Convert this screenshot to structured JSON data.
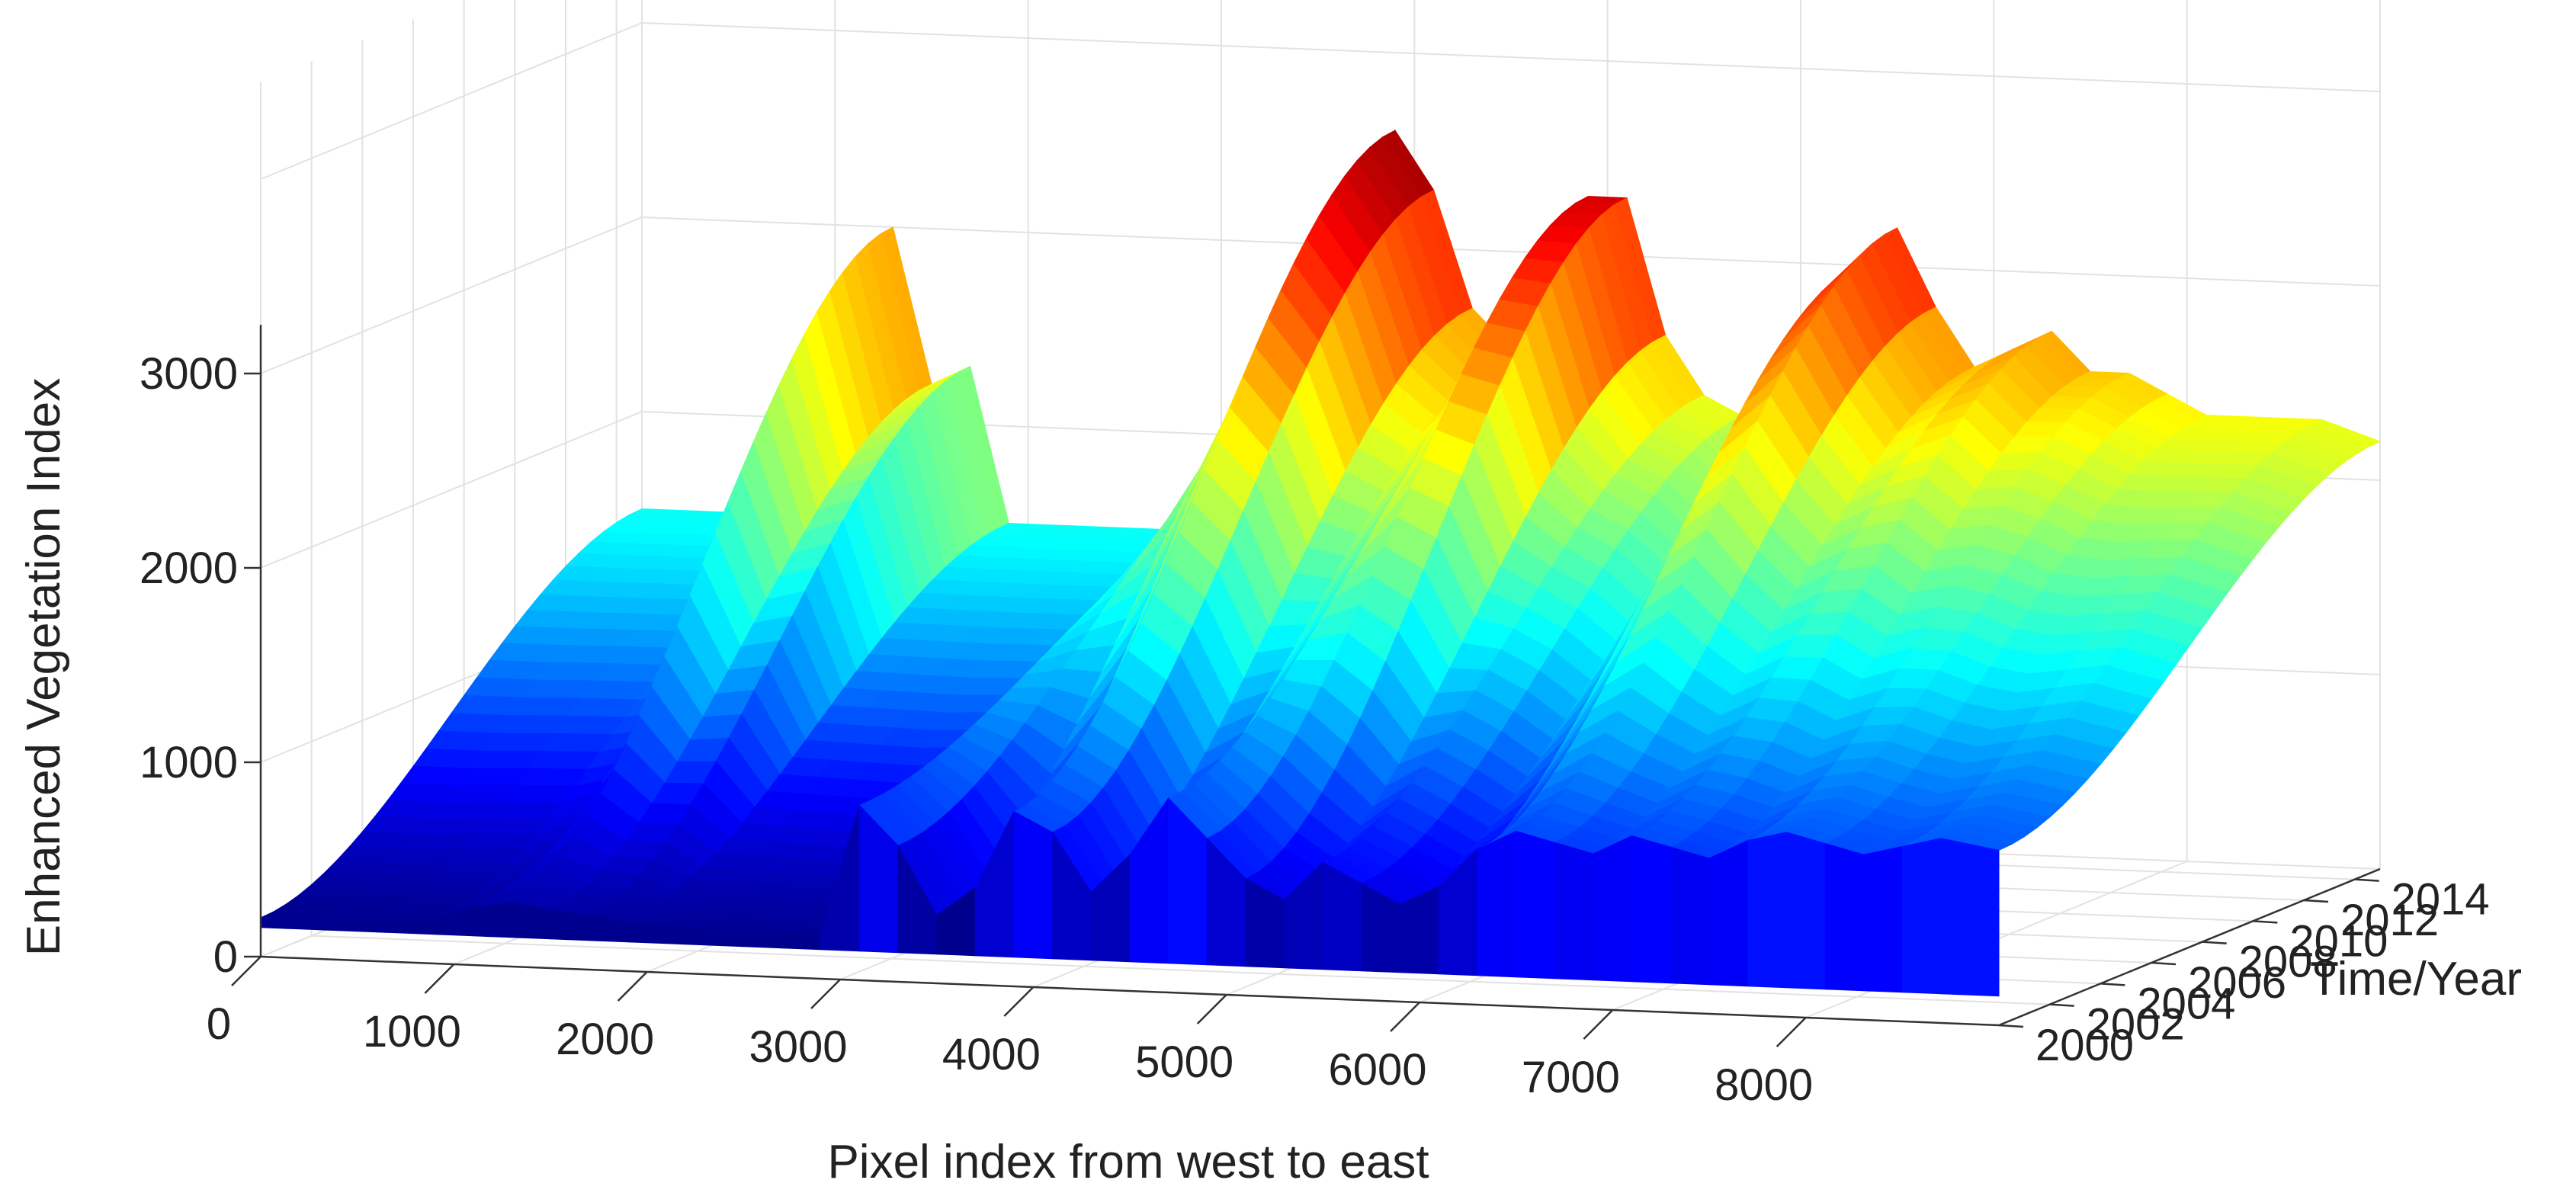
{
  "chart_data": {
    "type": "surface3d",
    "xlabel": "Pixel index from west to east",
    "ylabel": "Time/Year",
    "zlabel": "Enhanced Vegetation Index",
    "xlim": [
      0,
      9000
    ],
    "ylim": [
      2000,
      2015
    ],
    "zlim": [
      0,
      3000
    ],
    "x_ticks": [
      0,
      1000,
      2000,
      3000,
      4000,
      5000,
      6000,
      7000,
      8000
    ],
    "x_tick_labels": [
      "0",
      "1000",
      "2000",
      "3000",
      "4000",
      "5000",
      "6000",
      "7000",
      "8000"
    ],
    "y_ticks": [
      2000,
      2002,
      2004,
      2006,
      2008,
      2010,
      2012,
      2014
    ],
    "y_tick_labels": [
      "2000",
      "2002",
      "2004",
      "2006",
      "2008",
      "2010",
      "2012",
      "2014"
    ],
    "z_ticks": [
      0,
      1000,
      2000,
      3000
    ],
    "z_tick_labels": [
      "0",
      "1000",
      "2000",
      "3000"
    ],
    "grid": true,
    "colormap": "jet",
    "colormap_stops": [
      "#00008f",
      "#0000ff",
      "#0080ff",
      "#00ffff",
      "#80ff80",
      "#ffff00",
      "#ff8000",
      "#ff0000",
      "#800000"
    ],
    "profile": {
      "x": [
        0,
        300,
        600,
        900,
        1100,
        1300,
        1500,
        1700,
        1900,
        2100,
        2300,
        2500,
        2700,
        2900,
        3100,
        3300,
        3500,
        3700,
        3900,
        4100,
        4300,
        4500,
        4700,
        4900,
        5100,
        5300,
        5500,
        5700,
        5900,
        6100,
        6300,
        6500,
        6700,
        6900,
        7100,
        7300,
        7500,
        7700,
        7900,
        8100,
        8300,
        8500,
        8700,
        9000
      ],
      "evi_2000": [
        200,
        200,
        220,
        230,
        300,
        330,
        300,
        280,
        250,
        240,
        230,
        220,
        240,
        230,
        900,
        700,
        350,
        500,
        900,
        800,
        500,
        700,
        1000,
        800,
        600,
        500,
        700,
        600,
        500,
        600,
        800,
        900,
        850,
        800,
        900,
        850,
        800,
        900,
        950,
        900,
        850,
        900,
        950,
        900
      ],
      "evi_2015": [
        1500,
        1500,
        1500,
        1500,
        1500,
        3000,
        2200,
        2300,
        1500,
        1500,
        1500,
        1500,
        1500,
        1500,
        1700,
        2100,
        2600,
        3100,
        3600,
        3300,
        2700,
        2500,
        2700,
        3300,
        3300,
        2600,
        2300,
        2200,
        2000,
        2500,
        3000,
        3200,
        2800,
        2500,
        2600,
        2700,
        2500,
        2500,
        2400,
        2300,
        2300,
        2300,
        2300,
        2200
      ]
    }
  }
}
